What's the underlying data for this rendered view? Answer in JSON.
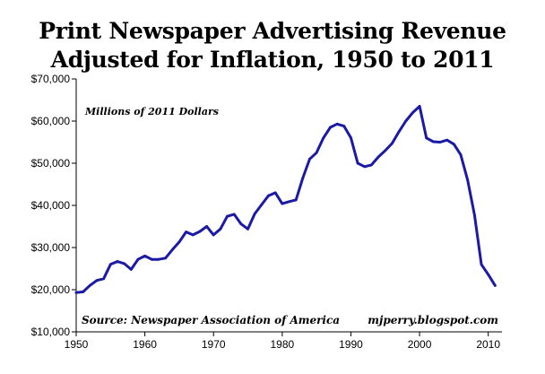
{
  "title_line1": "Print Newspaper Advertising Revenue",
  "title_line2": "Adjusted for Inflation, 1950 to 2011",
  "annotations": {
    "units": "Millions of 2011 Dollars",
    "source": "Source: Newspaper Association of America",
    "website": "mjperry.blogspot.com"
  },
  "colors": {
    "line": "#1a1aa6",
    "axis": "#000000",
    "background": "#ffffff"
  },
  "chart_data": {
    "type": "line",
    "title": "Print Newspaper Advertising Revenue Adjusted for Inflation, 1950 to 2011",
    "xlabel": "",
    "ylabel": "",
    "xlim": [
      1950,
      2012
    ],
    "ylim": [
      10000,
      70000
    ],
    "grid": false,
    "xticks": [
      1950,
      1960,
      1970,
      1980,
      1990,
      2000,
      2010
    ],
    "xtick_labels": [
      "1950",
      "1960",
      "1970",
      "1980",
      "1990",
      "2000",
      "2010"
    ],
    "yticks": [
      10000,
      20000,
      30000,
      40000,
      50000,
      60000,
      70000
    ],
    "ytick_labels": [
      "$10,000",
      "$20,000",
      "$30,000",
      "$40,000",
      "$50,000",
      "$60,000",
      "$70,000"
    ],
    "series": [
      {
        "name": "",
        "x": [
          1950,
          1951,
          1952,
          1953,
          1954,
          1955,
          1956,
          1957,
          1958,
          1959,
          1960,
          1961,
          1962,
          1963,
          1964,
          1965,
          1966,
          1967,
          1968,
          1969,
          1970,
          1971,
          1972,
          1973,
          1974,
          1975,
          1976,
          1977,
          1978,
          1979,
          1980,
          1981,
          1982,
          1983,
          1984,
          1985,
          1986,
          1987,
          1988,
          1989,
          1990,
          1991,
          1992,
          1993,
          1994,
          1995,
          1996,
          1997,
          1998,
          1999,
          2000,
          2001,
          2002,
          2003,
          2004,
          2005,
          2006,
          2007,
          2008,
          2009,
          2010,
          2011
        ],
        "y": [
          19300,
          19500,
          21000,
          22200,
          22600,
          26000,
          26700,
          26200,
          24800,
          27200,
          28000,
          27200,
          27200,
          27500,
          29500,
          31300,
          33700,
          33000,
          33800,
          35000,
          33000,
          34400,
          37400,
          37900,
          35600,
          34400,
          38000,
          40200,
          42300,
          43000,
          40400,
          40900,
          41300,
          46500,
          51000,
          52500,
          56000,
          58500,
          59300,
          58800,
          56000,
          50000,
          49200,
          49600,
          51500,
          53000,
          54700,
          57500,
          60000,
          62000,
          63500,
          56000,
          55100,
          55000,
          55500,
          54500,
          52000,
          46000,
          37700,
          26000,
          23600,
          21000
        ]
      }
    ]
  }
}
